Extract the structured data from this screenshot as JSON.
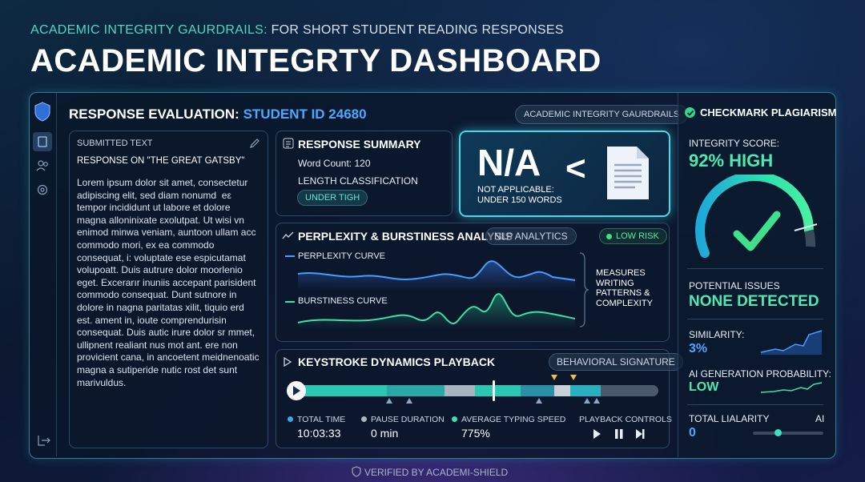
{
  "header": {
    "kicker_accent": "ACADEMIC INTEGRITY GAURDRAILS:",
    "kicker_rest": "FOR SHORT STUDENT READING RESPONSES",
    "title": "ACADEMIC INTEGRTY DASHBOARD"
  },
  "panel": {
    "title": "RESPONSE EVALUATION:",
    "student_id": "STUDENT ID 24680",
    "badge": "ACADEMIC INTEGRITY GAURDRAILS"
  },
  "submitted": {
    "label": "SUBMITTED TEXT",
    "heading": "RESPONSE ON \"THE GREAT GATSBY\"",
    "lines": [
      "Lorem ipsum dolor sit amet, consectetur",
      "adipiscing elit, sed diam nonumd  eε",
      "tempor incididunt ut labore et dolore",
      "magna alloninixate ɛxolutpat. Ut wisi vn",
      "enimod minwa veniam, auntoon ullam acc",
      "commodo mori, ex ea commodo",
      "consequat, i: voluptate ese espicutamat",
      "volupoatt. Duis autrure dolor moorlenio",
      "eget. Excerarır inuniis accepant parisident",
      "commodo consequat. Dunt sutnore in",
      "dolore in nagna paritatas xilit, tiquio erd",
      "est. ament in, ioute comprendurisin",
      "consequat. Duis autic irure dolor sr mmet,",
      "ullipnent realiant nus mot ant. ere non",
      "provicient cana, in ancoetent meidnenoatic",
      "magna a sutiperide nutic rost det sunt",
      "marivuldus."
    ]
  },
  "summary": {
    "title": "RESPONSE SUMMARY",
    "word_count": "Word Count: 120",
    "classification_label": "LENGTH CLASSIFICATION",
    "classification": "UNDER TIGH"
  },
  "status": {
    "value": "N/A",
    "symbol": "<",
    "line1": "NOT APPLICABLE:",
    "line2": "UNDER 150 WORDS"
  },
  "analysis": {
    "title": "PERPLEXITY & BURSTINESS ANALYSIS",
    "tag": "NLP ANALYTICS",
    "risk": "LOW RISK",
    "perplexity": "PERPLEXITY CURVE",
    "burstiness": "BURSTINESS CURVE",
    "note": "MEASURES WRITING PATTERNS & COMPLEXITY"
  },
  "keystroke": {
    "title": "KEYSTROKE DYNAMICS PLAYBACK",
    "tag": "BEHAVIORAL SIGNATURE",
    "stats": [
      {
        "label": "TOTAL TIME",
        "value": "10:03:33"
      },
      {
        "label": "PAUSE DURATION",
        "value": "0 min"
      },
      {
        "label": "AVERAGE TYPING SPEED",
        "value": "775%"
      }
    ],
    "controls": "PLAYBACK CONTROLS"
  },
  "sidebar": {
    "title": "CHECKMARK PLAGIARISM",
    "score_label": "INTEGRITY SCORE:",
    "score": "92% HIGH",
    "issues_label": "POTENTIAL ISSUES",
    "issues": "NONE DETECTED",
    "similarity_label": "SIMILARITY:",
    "similarity": "3%",
    "ai_label": "AI GENERATION PROBABILITY:",
    "ai": "LOW",
    "liability_label": "TOTAL LIALARITY",
    "liability_right": "AI",
    "liability": "0"
  },
  "footer": "VERIFIED BY ACADEMI-SHIELD"
}
